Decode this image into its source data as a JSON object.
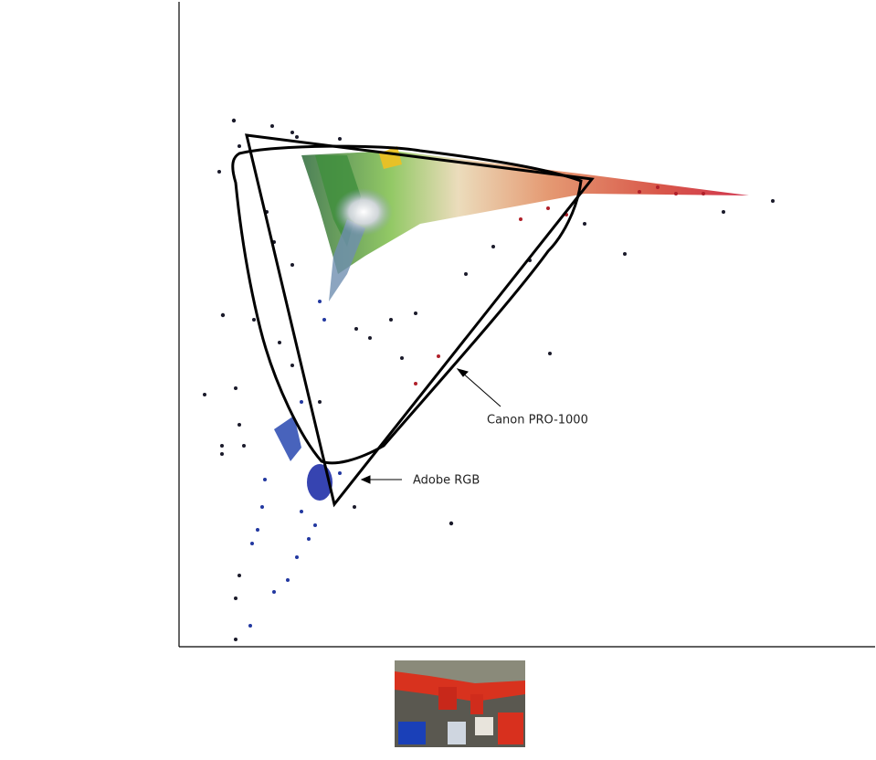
{
  "annotations": [
    "Canon PRO-1000",
    "Adobe RGB"
  ]
}
